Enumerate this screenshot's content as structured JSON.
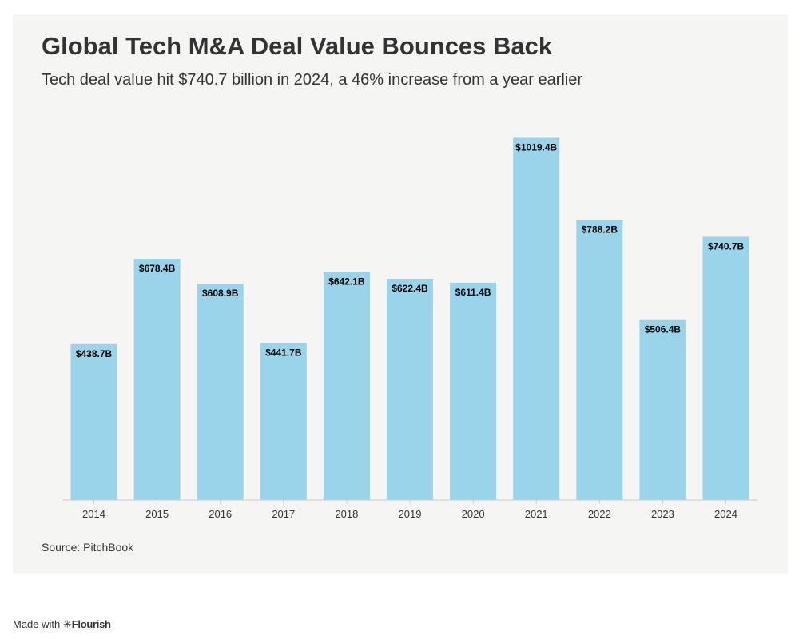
{
  "title": "Global Tech M&A Deal Value Bounces Back",
  "subtitle": "Tech deal value hit $740.7 billion in 2024, a 46% increase from a year earlier",
  "source": "Source: PitchBook",
  "credit": {
    "prefix": "Made with",
    "star": "✳",
    "brand": "Flourish"
  },
  "colors": {
    "bar": "#9ad4ea",
    "background": "#f5f5f4",
    "text": "#333333",
    "axis": "#cccccc"
  },
  "chart_data": {
    "type": "bar",
    "title": "Global Tech M&A Deal Value Bounces Back",
    "xlabel": "",
    "ylabel": "",
    "grid": false,
    "ylim": [
      0,
      1100
    ],
    "categories": [
      "2014",
      "2015",
      "2016",
      "2017",
      "2018",
      "2019",
      "2020",
      "2021",
      "2022",
      "2023",
      "2024"
    ],
    "values": [
      438.7,
      678.4,
      608.9,
      441.7,
      642.1,
      622.4,
      611.4,
      1019.4,
      788.2,
      506.4,
      740.7
    ],
    "data_labels": [
      "$438.7B",
      "$678.4B",
      "$608.9B",
      "$441.7B",
      "$642.1B",
      "$622.4B",
      "$611.4B",
      "$1019.4B",
      "$788.2B",
      "$506.4B",
      "$740.7B"
    ]
  }
}
